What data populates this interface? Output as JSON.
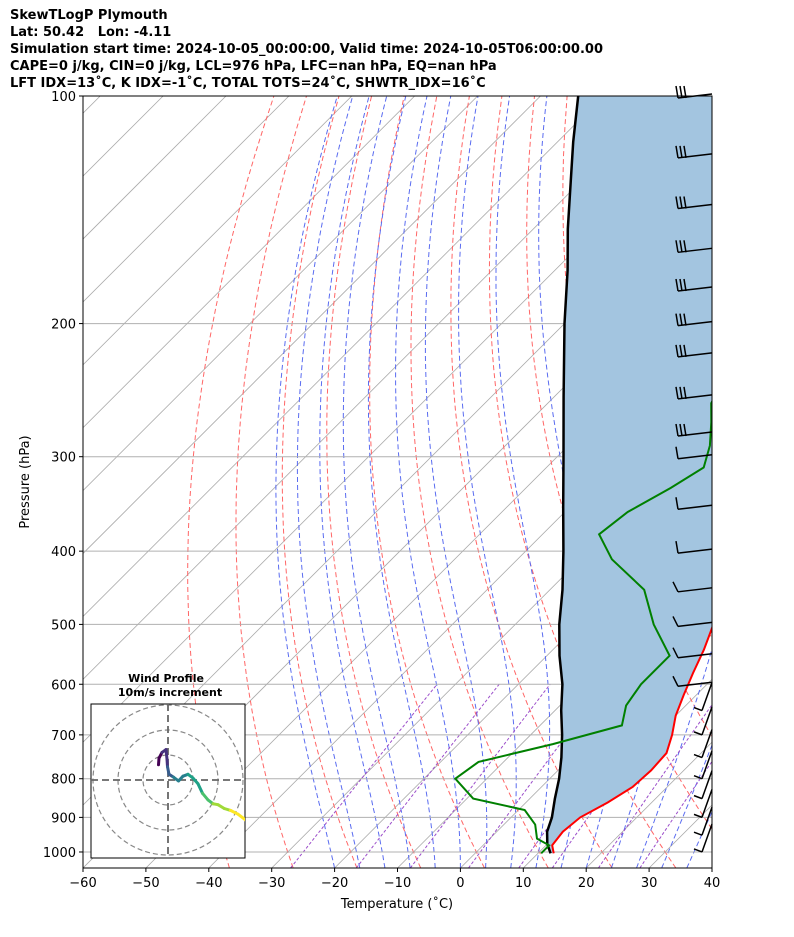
{
  "header": {
    "line1": "SkewTLogP Plymouth",
    "line2": "Lat: 50.42   Lon: -4.11",
    "line3": "Simulation start time: 2024-10-05_00:00:00, Valid time: 2024-10-05T06:00:00.00",
    "line4": "CAPE=0 j/kg, CIN=0 j/kg, LCL=976 hPa, LFC=nan hPa, EQ=nan hPa",
    "line5": "LFT IDX=13˚C, K IDX=-1˚C, TOTAL TOTS=24˚C, SHWTR_IDX=16˚C"
  },
  "colors": {
    "temperature": "#ff0000",
    "dewpoint": "#008000",
    "parcel": "#000000",
    "cape_fill": "#a3c5e0",
    "dry_adiabat": "#ff6666",
    "moist_adiabat": "#5a6cf0",
    "mixing_ratio": "#9b4dca",
    "isotherm": "#aaaaaa"
  },
  "chart_data": [
    {
      "type": "line",
      "title": "",
      "xlabel": "Temperature (˚C)",
      "ylabel": "Pressure (hPa)",
      "x_ticks": [
        -60,
        -50,
        -40,
        -30,
        -20,
        -10,
        0,
        10,
        20,
        30,
        40
      ],
      "y_ticks": [
        100,
        200,
        300,
        400,
        500,
        600,
        700,
        800,
        900,
        1000
      ],
      "xlim": [
        -60,
        40
      ],
      "ylim": [
        1050,
        100
      ],
      "y_scale": "log",
      "grid": true,
      "series": [
        {
          "name": "temperature",
          "points": [
            [
              1004,
              12.5
            ],
            [
              980,
              11.0
            ],
            [
              940,
              10.5
            ],
            [
              900,
              11.0
            ],
            [
              860,
              13.0
            ],
            [
              820,
              14.5
            ],
            [
              780,
              14.8
            ],
            [
              740,
              14.5
            ],
            [
              700,
              12.5
            ],
            [
              660,
              10.0
            ],
            [
              620,
              8.0
            ],
            [
              580,
              6.0
            ],
            [
              540,
              4.0
            ],
            [
              500,
              1.5
            ],
            [
              460,
              -1.5
            ],
            [
              420,
              -5.0
            ],
            [
              380,
              -9.0
            ],
            [
              350,
              -12.5
            ],
            [
              320,
              -16.0
            ],
            [
              300,
              -18.5
            ],
            [
              280,
              -21.5
            ],
            [
              260,
              -25.0
            ],
            [
              240,
              -29.0
            ],
            [
              220,
              -33.0
            ],
            [
              200,
              -37.5
            ],
            [
              190,
              -40.0
            ],
            [
              180,
              -41.5
            ],
            [
              165,
              -42.5
            ],
            [
              150,
              -43.5
            ],
            [
              135,
              -45.0
            ],
            [
              120,
              -48.0
            ],
            [
              110,
              -51.0
            ],
            [
              100,
              -54.5
            ]
          ]
        },
        {
          "name": "dewpoint",
          "points": [
            [
              1004,
              10.5
            ],
            [
              980,
              10.5
            ],
            [
              960,
              7.5
            ],
            [
              920,
              5.0
            ],
            [
              880,
              1.0
            ],
            [
              850,
              -9.0
            ],
            [
              800,
              -15.0
            ],
            [
              760,
              -14.0
            ],
            [
              720,
              -5.0
            ],
            [
              680,
              3.0
            ],
            [
              640,
              0.5
            ],
            [
              600,
              -0.5
            ],
            [
              550,
              -0.5
            ],
            [
              500,
              -8.0
            ],
            [
              450,
              -15.0
            ],
            [
              410,
              -25.0
            ],
            [
              380,
              -31.0
            ],
            [
              355,
              -30.0
            ],
            [
              330,
              -27.0
            ],
            [
              310,
              -25.0
            ],
            [
              290,
              -27.5
            ],
            [
              270,
              -31.0
            ],
            [
              255,
              -34.0
            ],
            [
              240,
              -35.5
            ],
            [
              215,
              -38.5
            ],
            [
              195,
              -42.0
            ],
            [
              175,
              -45.0
            ],
            [
              160,
              -47.5
            ],
            [
              145,
              -51.0
            ],
            [
              130,
              -55.0
            ],
            [
              115,
              -58.0
            ],
            [
              100,
              -62.0
            ]
          ]
        },
        {
          "name": "parcel",
          "points": [
            [
              1004,
              12.0
            ],
            [
              976,
              10.0
            ],
            [
              940,
              8.0
            ],
            [
              900,
              6.5
            ],
            [
              850,
              4.0
            ],
            [
              800,
              1.5
            ],
            [
              750,
              -1.5
            ],
            [
              700,
              -5.0
            ],
            [
              650,
              -9.0
            ],
            [
              600,
              -13.0
            ],
            [
              550,
              -18.0
            ],
            [
              500,
              -23.0
            ],
            [
              450,
              -28.0
            ],
            [
              400,
              -34.0
            ],
            [
              350,
              -41.0
            ],
            [
              300,
              -49.0
            ],
            [
              250,
              -58.5
            ],
            [
              200,
              -70.0
            ],
            [
              170,
              -78.0
            ],
            [
              150,
              -84.5
            ],
            [
              130,
              -91.5
            ],
            [
              115,
              -97.5
            ],
            [
              100,
              -104.0
            ]
          ]
        }
      ],
      "wind_barb_pressures": [
        100,
        120,
        140,
        160,
        180,
        200,
        220,
        250,
        280,
        300,
        350,
        400,
        450,
        500,
        550,
        600,
        650,
        700,
        750,
        800,
        850,
        900,
        950,
        1000
      ]
    },
    {
      "type": "scatter",
      "title": "Wind Profile",
      "subtitle": "10m/s increment",
      "rings_ms": [
        10,
        20,
        30
      ]
    }
  ]
}
